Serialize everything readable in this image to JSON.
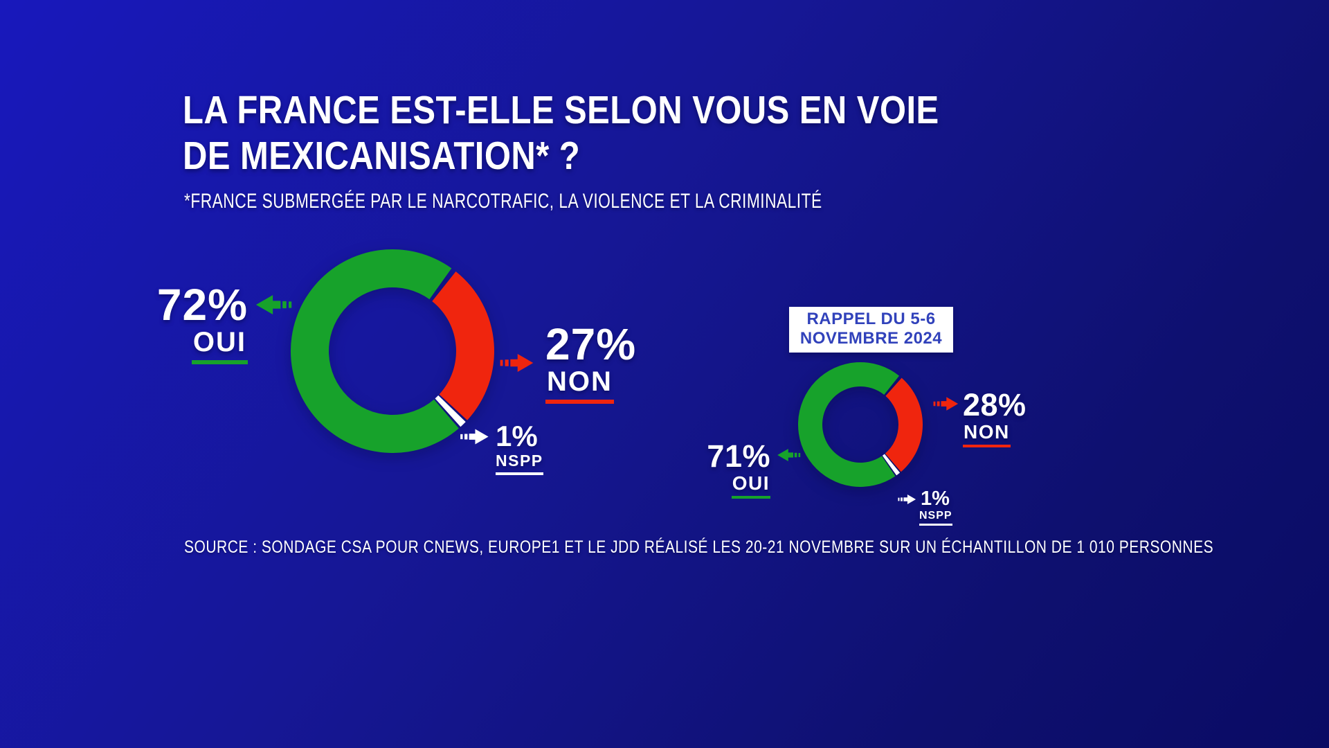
{
  "colors": {
    "green": "#17A22B",
    "red": "#F0250E",
    "white": "#FFFFFF",
    "rappel_blue": "#3142BB",
    "bg_top": "#1818BC",
    "bg_bottom": "#0A0B64"
  },
  "header": {
    "title_line1": "LA FRANCE EST-ELLE SELON VOUS EN VOIE",
    "title_line2": "DE MEXICANISATION* ?",
    "subtitle": "*FRANCE SUBMERGÉE PAR LE NARCOTRAFIC, LA VIOLENCE ET LA CRIMINALITÉ"
  },
  "main_poll": {
    "oui_pct": "72%",
    "oui_label": "OUI",
    "non_pct": "27%",
    "non_label": "NON",
    "nspp_pct": "1%",
    "nspp_label": "NSPP"
  },
  "recall_poll": {
    "badge_line1": "RAPPEL DU 5-6",
    "badge_line2": "NOVEMBRE 2024",
    "oui_pct": "71%",
    "oui_label": "OUI",
    "non_pct": "28%",
    "non_label": "NON",
    "nspp_pct": "1%",
    "nspp_label": "NSPP"
  },
  "source_line": "SOURCE : SONDAGE CSA POUR CNEWS, EUROPE1 ET LE JDD RÉALISÉ LES 20-21 NOVEMBRE SUR UN ÉCHANTILLON DE 1 010 PERSONNES",
  "chart_data": [
    {
      "type": "pie",
      "variant": "donut",
      "title": "LA FRANCE EST-ELLE SELON VOUS EN VOIE DE MEXICANISATION* ?",
      "categories": [
        "OUI",
        "NON",
        "NSPP"
      ],
      "values": [
        72,
        27,
        1
      ],
      "units": "%",
      "colors": [
        "#17A22B",
        "#F0250E",
        "#FFFFFF"
      ],
      "draw_order": [
        1,
        2,
        0
      ],
      "start_angle_deg": 37,
      "legend_position": "around-chart"
    },
    {
      "type": "pie",
      "variant": "donut",
      "title": "RAPPEL DU 5-6 NOVEMBRE 2024",
      "categories": [
        "OUI",
        "NON",
        "NSPP"
      ],
      "values": [
        71,
        28,
        1
      ],
      "units": "%",
      "colors": [
        "#17A22B",
        "#F0250E",
        "#FFFFFF"
      ],
      "draw_order": [
        1,
        2,
        0
      ],
      "start_angle_deg": 40,
      "legend_position": "around-chart"
    }
  ]
}
